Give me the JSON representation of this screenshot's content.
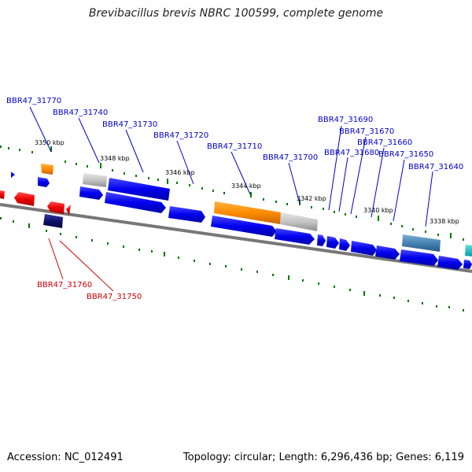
{
  "title": "Brevibacillus brevis NBRC 100599, complete genome",
  "footer": {
    "accession": "Accession: NC_012491",
    "summary": "Topology: circular; Length: 6,296,436 bp; Genes: 6,119"
  },
  "colors": {
    "forward_label": "#0000cc",
    "reverse_label": "#cc0000",
    "forward_gene": "#0000ee",
    "reverse_gene": "#ee0000",
    "backbone": "#777777",
    "ticks": "#007700"
  },
  "ticks": [
    "3350 kbp",
    "3348 kbp",
    "3346 kbp",
    "3344 kbp",
    "3342 kbp",
    "3340 kbp",
    "3338 kbp"
  ],
  "gene_labels_forward": [
    "BBR47_31770",
    "BBR47_31740",
    "BBR47_31730",
    "BBR47_31720",
    "BBR47_31710",
    "BBR47_31700",
    "BBR47_31690",
    "BBR47_31680",
    "BBR47_31670",
    "BBR47_31660",
    "BBR47_31650",
    "BBR47_31640"
  ],
  "gene_labels_reverse": [
    "BBR47_31760",
    "BBR47_31750"
  ]
}
